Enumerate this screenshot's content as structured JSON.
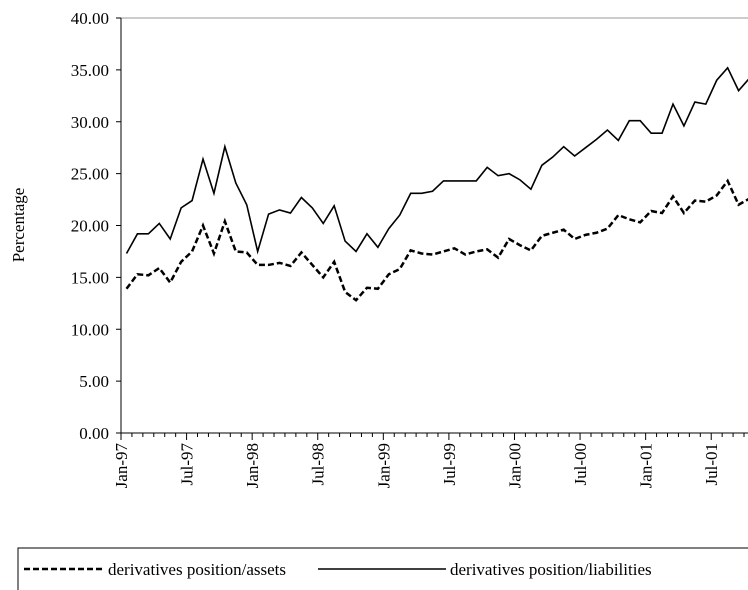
{
  "chart_data": {
    "type": "line",
    "ylabel": "Percentage",
    "categories": [
      "Jan-97",
      null,
      null,
      null,
      null,
      null,
      "Jul-97",
      null,
      null,
      null,
      null,
      null,
      "Jan-98",
      null,
      null,
      null,
      null,
      null,
      "Jul-98",
      null,
      null,
      null,
      null,
      null,
      "Jan-99",
      null,
      null,
      null,
      null,
      null,
      "Jul-99",
      null,
      null,
      null,
      null,
      null,
      "Jan-00",
      null,
      null,
      null,
      null,
      null,
      "Jul-00",
      null,
      null,
      null,
      null,
      null,
      "Jan-01",
      null,
      null,
      null,
      null,
      null,
      "Jul-01",
      null,
      null,
      null
    ],
    "series": [
      {
        "name": "derivatives position/assets",
        "color": "#000000",
        "dash": true,
        "values": [
          13.9,
          15.3,
          15.2,
          15.9,
          14.5,
          16.5,
          17.5,
          20.0,
          17.3,
          20.4,
          17.5,
          17.4,
          16.2,
          16.2,
          16.4,
          16.1,
          17.4,
          16.2,
          15.0,
          16.5,
          13.6,
          12.8,
          14.0,
          13.9,
          15.3,
          15.8,
          17.6,
          17.3,
          17.2,
          17.5,
          17.8,
          17.2,
          17.5,
          17.7,
          16.9,
          18.7,
          18.1,
          17.6,
          19.0,
          19.3,
          19.6,
          18.7,
          19.1,
          19.3,
          19.7,
          21.0,
          20.6,
          20.3,
          21.4,
          21.2,
          22.8,
          21.2,
          22.4,
          22.3,
          22.9,
          24.3,
          22.0,
          22.6
        ]
      },
      {
        "name": "derivatives position/liabilities",
        "color": "#000000",
        "dash": false,
        "values": [
          17.3,
          19.2,
          19.2,
          20.2,
          18.7,
          21.7,
          22.4,
          26.4,
          23.1,
          27.6,
          24.1,
          22.0,
          17.5,
          21.1,
          21.5,
          21.2,
          22.7,
          21.7,
          20.2,
          21.9,
          18.5,
          17.5,
          19.2,
          17.9,
          19.7,
          21.0,
          23.1,
          23.1,
          23.3,
          24.3,
          24.3,
          24.3,
          24.3,
          25.6,
          24.8,
          25.0,
          24.4,
          23.5,
          25.8,
          26.6,
          27.6,
          26.7,
          27.5,
          28.3,
          29.2,
          28.2,
          30.1,
          30.1,
          28.9,
          28.9,
          31.7,
          29.6,
          31.9,
          31.7,
          34.0,
          35.2,
          33.0,
          34.2
        ]
      }
    ],
    "ylim": [
      0,
      40
    ],
    "yticks": [
      {
        "value": 0,
        "label": "0.00"
      },
      {
        "value": 5,
        "label": "5.00"
      },
      {
        "value": 10,
        "label": "10.00"
      },
      {
        "value": 15,
        "label": "15.00"
      },
      {
        "value": 20,
        "label": "20.00"
      },
      {
        "value": 25,
        "label": "25.00"
      },
      {
        "value": 30,
        "label": "30.00"
      },
      {
        "value": 35,
        "label": "35.00"
      },
      {
        "value": 40,
        "label": "40.00"
      }
    ],
    "grid": false,
    "legend": "bottom"
  }
}
